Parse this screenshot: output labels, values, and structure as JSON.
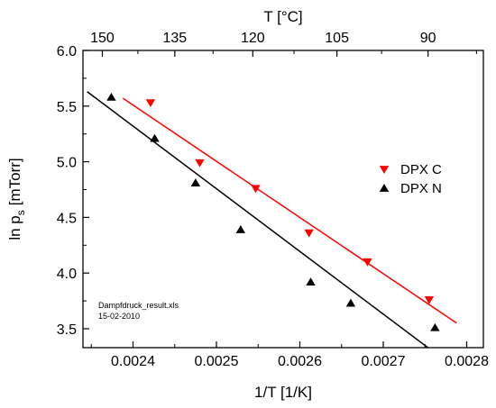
{
  "chart_data": {
    "type": "scatter",
    "title": "",
    "xlabel": "1/T [1/K]",
    "top_axis_label": "T [°C]",
    "ylabel_main": "ln p",
    "ylabel_sub": "s",
    "ylabel_unit": "[mTorr]",
    "xlim": [
      0.00234,
      0.00282
    ],
    "ylim": [
      3.33,
      6.0
    ],
    "x_ticks": [
      0.0024,
      0.0025,
      0.0026,
      0.0027,
      0.0028
    ],
    "x_tick_labels": [
      "0.0024",
      "0.0025",
      "0.0026",
      "0.0027",
      "0.0028"
    ],
    "y_ticks": [
      3.5,
      4.0,
      4.5,
      5.0,
      5.5,
      6.0
    ],
    "y_tick_labels": [
      "3.5",
      "4.0",
      "4.5",
      "5.0",
      "5.5",
      "6.0"
    ],
    "top_ticks_celsius": [
      150,
      135,
      120,
      105,
      90
    ],
    "top_tick_labels": [
      "150",
      "135",
      "120",
      "105",
      "90"
    ],
    "grid": false,
    "legend_position": "right-middle",
    "series": [
      {
        "name": "DPX C",
        "marker": "triangle-down",
        "color": "#ff0000",
        "x": [
          0.002421,
          0.00248,
          0.002547,
          0.002611,
          0.002681,
          0.002755
        ],
        "y": [
          5.53,
          4.99,
          4.76,
          4.36,
          4.1,
          3.76
        ],
        "fit": {
          "x": [
            0.002388,
            0.002788
          ],
          "y": [
            5.57,
            3.55
          ]
        }
      },
      {
        "name": "DPX N",
        "marker": "triangle-up",
        "color": "#000000",
        "x": [
          0.002374,
          0.002426,
          0.002475,
          0.002529,
          0.002613,
          0.002661,
          0.002762
        ],
        "y": [
          5.58,
          5.21,
          4.81,
          4.39,
          3.92,
          3.73,
          3.51
        ],
        "fit": {
          "x": [
            0.002345,
            0.002766
          ],
          "y": [
            5.63,
            3.26
          ]
        }
      }
    ],
    "annotation": {
      "line1": "Dampfdruck_result.xls",
      "line2": "15-02-2010"
    }
  }
}
